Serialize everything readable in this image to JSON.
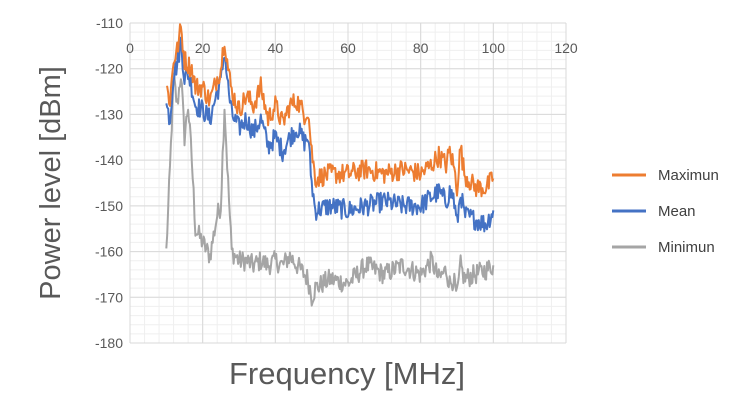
{
  "chart_data": {
    "type": "line",
    "title": "",
    "xlabel": "Frequency [MHz]",
    "ylabel": "Power level [dBm]",
    "xlim": [
      0,
      120
    ],
    "ylim": [
      -180,
      -110
    ],
    "x_ticks": [
      0,
      20,
      40,
      60,
      80,
      100,
      120
    ],
    "y_ticks": [
      -110,
      -120,
      -130,
      -140,
      -150,
      -160,
      -170,
      -180
    ],
    "x_tick_labels": [
      "0",
      "20",
      "40",
      "60",
      "80",
      "100",
      "120"
    ],
    "y_tick_labels": [
      "-110",
      "-120",
      "-130",
      "-140",
      "-150",
      "-160",
      "-170",
      "-180"
    ],
    "grid": true,
    "legend_position": "right",
    "series": [
      {
        "name": "Maximun",
        "color": "#ED7D31",
        "points": [
          [
            10,
            -124
          ],
          [
            11,
            -127
          ],
          [
            12,
            -118
          ],
          [
            13,
            -116
          ],
          [
            14,
            -111
          ],
          [
            15,
            -118
          ],
          [
            16,
            -119
          ],
          [
            17,
            -120
          ],
          [
            18,
            -124
          ],
          [
            20,
            -124
          ],
          [
            22,
            -127
          ],
          [
            24,
            -122
          ],
          [
            25,
            -120
          ],
          [
            26,
            -113
          ],
          [
            27,
            -120
          ],
          [
            28,
            -125
          ],
          [
            30,
            -129
          ],
          [
            32,
            -126
          ],
          [
            34,
            -128
          ],
          [
            36,
            -124
          ],
          [
            38,
            -131
          ],
          [
            40,
            -128
          ],
          [
            42,
            -132
          ],
          [
            44,
            -128
          ],
          [
            46,
            -127
          ],
          [
            48,
            -130
          ],
          [
            49,
            -129
          ],
          [
            50,
            -138
          ],
          [
            51,
            -144
          ],
          [
            55,
            -143
          ],
          [
            60,
            -143
          ],
          [
            65,
            -142
          ],
          [
            70,
            -143
          ],
          [
            75,
            -142
          ],
          [
            80,
            -143
          ],
          [
            83,
            -141
          ],
          [
            85,
            -139
          ],
          [
            87,
            -141
          ],
          [
            88,
            -138
          ],
          [
            89,
            -141
          ],
          [
            90,
            -146
          ],
          [
            91,
            -137
          ],
          [
            92,
            -143
          ],
          [
            95,
            -146
          ],
          [
            98,
            -146
          ],
          [
            100,
            -144
          ]
        ]
      },
      {
        "name": "Mean",
        "color": "#4472C4",
        "points": [
          [
            10,
            -128
          ],
          [
            11,
            -131
          ],
          [
            12,
            -121
          ],
          [
            13,
            -119
          ],
          [
            14,
            -114
          ],
          [
            15,
            -122
          ],
          [
            16,
            -121
          ],
          [
            17,
            -124
          ],
          [
            18,
            -128
          ],
          [
            20,
            -129
          ],
          [
            22,
            -131
          ],
          [
            24,
            -125
          ],
          [
            25,
            -123
          ],
          [
            26,
            -116
          ],
          [
            27,
            -124
          ],
          [
            28,
            -130
          ],
          [
            30,
            -133
          ],
          [
            32,
            -131
          ],
          [
            34,
            -134
          ],
          [
            36,
            -131
          ],
          [
            38,
            -137
          ],
          [
            40,
            -135
          ],
          [
            42,
            -138
          ],
          [
            44,
            -135
          ],
          [
            46,
            -133
          ],
          [
            48,
            -136
          ],
          [
            49,
            -135
          ],
          [
            50,
            -145
          ],
          [
            51,
            -151
          ],
          [
            55,
            -150
          ],
          [
            60,
            -151
          ],
          [
            65,
            -150
          ],
          [
            70,
            -149
          ],
          [
            75,
            -150
          ],
          [
            80,
            -150
          ],
          [
            83,
            -148
          ],
          [
            85,
            -147
          ],
          [
            87,
            -149
          ],
          [
            88,
            -147
          ],
          [
            89,
            -148
          ],
          [
            90,
            -154
          ],
          [
            91,
            -147
          ],
          [
            92,
            -152
          ],
          [
            95,
            -153
          ],
          [
            98,
            -154
          ],
          [
            100,
            -151
          ]
        ]
      },
      {
        "name": "Minimun",
        "color": "#A5A5A5",
        "points": [
          [
            10,
            -160
          ],
          [
            11,
            -142
          ],
          [
            12,
            -122
          ],
          [
            13,
            -128
          ],
          [
            14,
            -121
          ],
          [
            15,
            -135
          ],
          [
            16,
            -128
          ],
          [
            17,
            -140
          ],
          [
            18,
            -155
          ],
          [
            20,
            -158
          ],
          [
            22,
            -161
          ],
          [
            24,
            -152
          ],
          [
            25,
            -150
          ],
          [
            26,
            -128
          ],
          [
            27,
            -145
          ],
          [
            28,
            -160
          ],
          [
            30,
            -162
          ],
          [
            32,
            -162
          ],
          [
            34,
            -163
          ],
          [
            36,
            -162
          ],
          [
            38,
            -163
          ],
          [
            40,
            -162
          ],
          [
            42,
            -163
          ],
          [
            44,
            -161
          ],
          [
            46,
            -163
          ],
          [
            48,
            -165
          ],
          [
            49,
            -166
          ],
          [
            50,
            -170
          ],
          [
            51,
            -168
          ],
          [
            55,
            -166
          ],
          [
            60,
            -167
          ],
          [
            65,
            -163
          ],
          [
            70,
            -165
          ],
          [
            75,
            -163
          ],
          [
            80,
            -165
          ],
          [
            83,
            -162
          ],
          [
            85,
            -166
          ],
          [
            87,
            -164
          ],
          [
            88,
            -167
          ],
          [
            89,
            -166
          ],
          [
            90,
            -170
          ],
          [
            91,
            -163
          ],
          [
            92,
            -166
          ],
          [
            95,
            -165
          ],
          [
            98,
            -164
          ],
          [
            100,
            -163
          ]
        ]
      }
    ]
  }
}
